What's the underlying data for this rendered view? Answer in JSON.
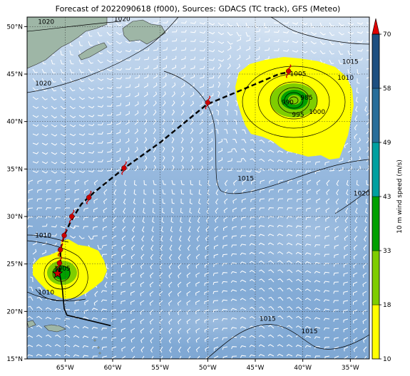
{
  "title": "Forecast of 2022090618 (f000), Sources: GDACS (TC track), GFS (Meteo)",
  "map": {
    "lon_range": [
      -69,
      -33
    ],
    "lat_range": [
      15,
      51
    ],
    "lon_ticks": [
      {
        "lon": -65,
        "label": "65°W"
      },
      {
        "lon": -60,
        "label": "60°W"
      },
      {
        "lon": -55,
        "label": "55°W"
      },
      {
        "lon": -50,
        "label": "50°W"
      },
      {
        "lon": -45,
        "label": "45°W"
      },
      {
        "lon": -40,
        "label": "40°W"
      },
      {
        "lon": -35,
        "label": "35°W"
      }
    ],
    "lat_ticks": [
      {
        "lat": 15,
        "label": "15°N"
      },
      {
        "lat": 20,
        "label": "20°N"
      },
      {
        "lat": 25,
        "label": "25°N"
      },
      {
        "lat": 30,
        "label": "30°N"
      },
      {
        "lat": 35,
        "label": "35°N"
      },
      {
        "lat": 40,
        "label": "40°N"
      },
      {
        "lat": 45,
        "label": "45°N"
      },
      {
        "lat": 50,
        "label": "50°N"
      }
    ],
    "gridlines": true,
    "colors": {
      "ocean_light": "#c9dcef",
      "ocean_mid": "#8fb3d9",
      "ocean_dark": "#6b9bcc",
      "land": "#9fb8a8",
      "wind_10_18": "#ffff00",
      "wind_18_33": "#7fcd00",
      "wind_33_43": "#00a000",
      "track": "#000000",
      "storm_symbol": "#cc0000"
    }
  },
  "isobar_labels": [
    {
      "text": "1020",
      "lon": -67,
      "lat": 50.3
    },
    {
      "text": "1020",
      "lon": -59,
      "lat": 50.6
    },
    {
      "text": "1020",
      "lon": -67.3,
      "lat": 43.8
    },
    {
      "text": "1015",
      "lon": -46,
      "lat": 33.8
    },
    {
      "text": "1015",
      "lon": -43.7,
      "lat": 19
    },
    {
      "text": "1015",
      "lon": -35,
      "lat": 46.1
    },
    {
      "text": "1015",
      "lon": -39.3,
      "lat": 17.7
    },
    {
      "text": "1010",
      "lon": -35.5,
      "lat": 44.4
    },
    {
      "text": "1005",
      "lon": -40.5,
      "lat": 44.8
    },
    {
      "text": "1000",
      "lon": -38.5,
      "lat": 40.8
    },
    {
      "text": "995",
      "lon": -40.5,
      "lat": 40.5
    },
    {
      "text": "990",
      "lon": -41.6,
      "lat": 41.8
    },
    {
      "text": "985",
      "lon": -39.6,
      "lat": 42.3
    },
    {
      "text": "1020",
      "lon": -33.8,
      "lat": 32.2
    },
    {
      "text": "1010",
      "lon": -67.3,
      "lat": 27.8
    },
    {
      "text": "1010",
      "lon": -67,
      "lat": 21.8
    },
    {
      "text": "1005",
      "lon": -65.3,
      "lat": 24.3
    }
  ],
  "storm_track": {
    "observed": [
      [
        -60.2,
        18.5
      ],
      [
        -63.5,
        19.3
      ],
      [
        -64.8,
        19.6
      ],
      [
        -65.1,
        20.3
      ],
      [
        -65.3,
        22.5
      ],
      [
        -65.6,
        24.1
      ]
    ],
    "forecast": [
      [
        -65.6,
        24.1
      ],
      [
        -65.5,
        25.0
      ],
      [
        -65.5,
        26.5
      ],
      [
        -65.1,
        28.0
      ],
      [
        -64.4,
        29.5
      ],
      [
        -63.3,
        31.3
      ],
      [
        -62.0,
        32.5
      ],
      [
        -58.9,
        35.0
      ],
      [
        -55.0,
        37.8
      ],
      [
        -50.1,
        41.8
      ],
      [
        -46.5,
        43.3
      ],
      [
        -42.5,
        45.0
      ],
      [
        -41.5,
        45.2
      ]
    ],
    "symbols": [
      {
        "lon": -65.6,
        "lat": 25.1
      },
      {
        "lon": -65.5,
        "lat": 26.5
      },
      {
        "lon": -65.1,
        "lat": 28.0
      },
      {
        "lon": -64.3,
        "lat": 30.0
      },
      {
        "lon": -62.5,
        "lat": 32.0
      },
      {
        "lon": -58.8,
        "lat": 35.1
      },
      {
        "lon": -50.0,
        "lat": 42.0
      },
      {
        "lon": -41.5,
        "lat": 45.3
      }
    ],
    "current_position": {
      "lon": -65.8,
      "lat": 24.0
    }
  },
  "colorbar": {
    "label": "10 m wind speed (m/s)",
    "levels": [
      10,
      18,
      33,
      43,
      49,
      58,
      70
    ],
    "colors": [
      "#ffff00",
      "#7fcd00",
      "#00a000",
      "#00a0a0",
      "#286e9a",
      "#1e4f80",
      "#1a2e6e"
    ],
    "extend_color": "#e00000"
  }
}
